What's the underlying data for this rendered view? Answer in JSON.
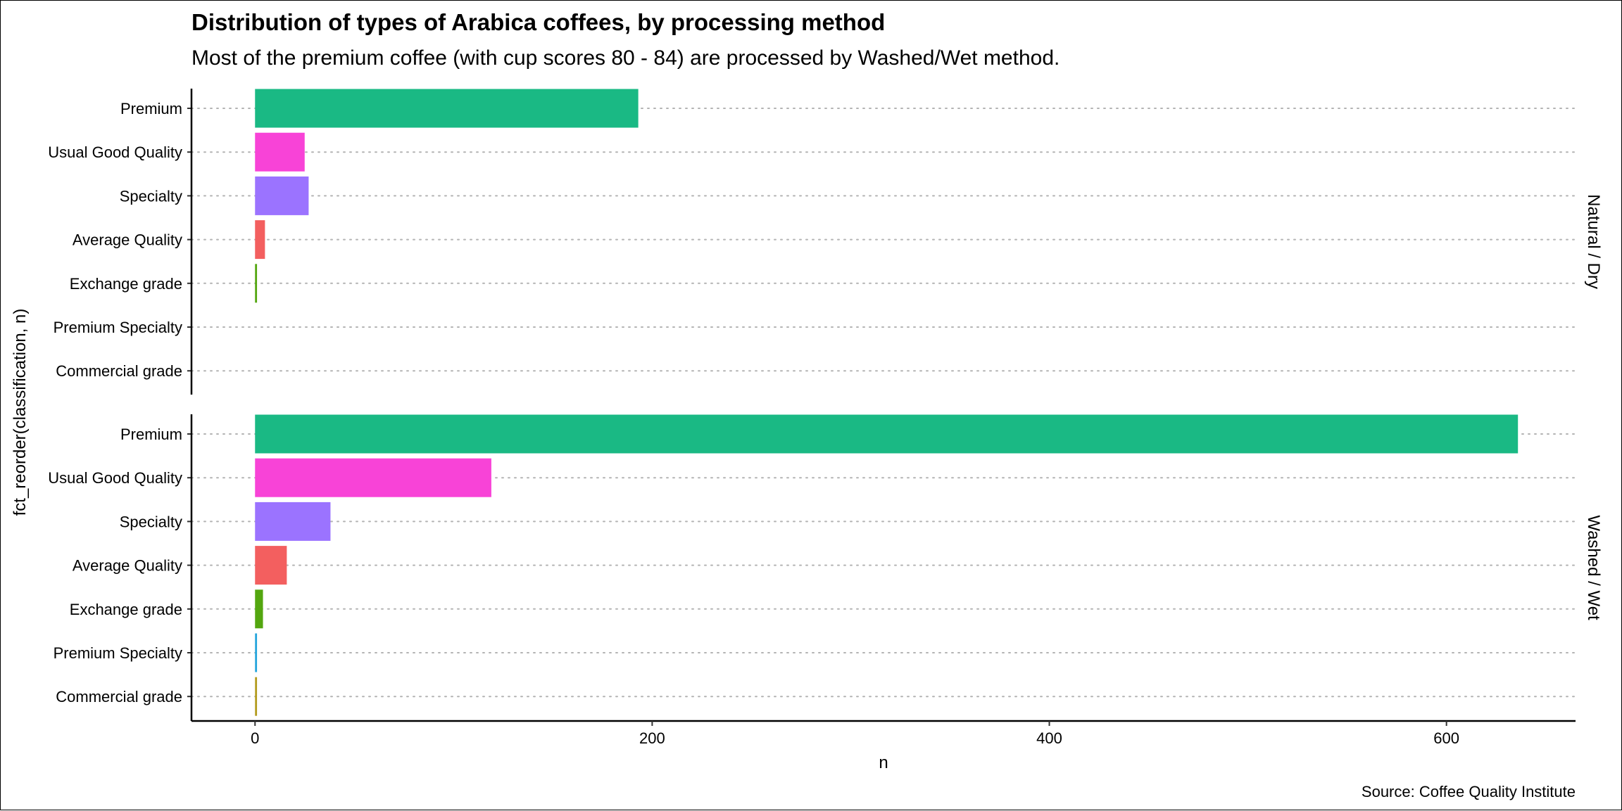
{
  "chart_data": {
    "type": "bar",
    "orientation": "horizontal",
    "title": "Distribution of types of Arabica coffees, by processing method",
    "subtitle": "Most of the premium coffee (with cup scores 80 - 84) are processed by Washed/Wet method.",
    "caption": "Source: Coffee Quality Institute",
    "xlabel": "n",
    "ylabel": "fct_reorder(classification, n)",
    "xlim": [
      -32,
      665
    ],
    "x_ticks": [
      0,
      200,
      400,
      600
    ],
    "x_tick_labels": [
      "0",
      "200",
      "400",
      "600"
    ],
    "grid": "dotted horizontal",
    "legend": "none",
    "categories": [
      "Premium",
      "Usual Good Quality",
      "Specialty",
      "Average Quality",
      "Exchange grade",
      "Premium Specialty",
      "Commercial grade"
    ],
    "colors": {
      "Premium": "#1ab984",
      "Usual Good Quality": "#f843d7",
      "Specialty": "#9b73ff",
      "Average Quality": "#f35f5f",
      "Exchange grade": "#53a60f",
      "Premium Specialty": "#25a5dc",
      "Commercial grade": "#b39b1e"
    },
    "panels": [
      {
        "label": "Natural / Dry",
        "values": [
          193,
          25,
          27,
          5,
          1,
          0,
          0
        ]
      },
      {
        "label": "Washed / Wet",
        "values": [
          636,
          119,
          38,
          16,
          4,
          1,
          1
        ]
      }
    ]
  }
}
